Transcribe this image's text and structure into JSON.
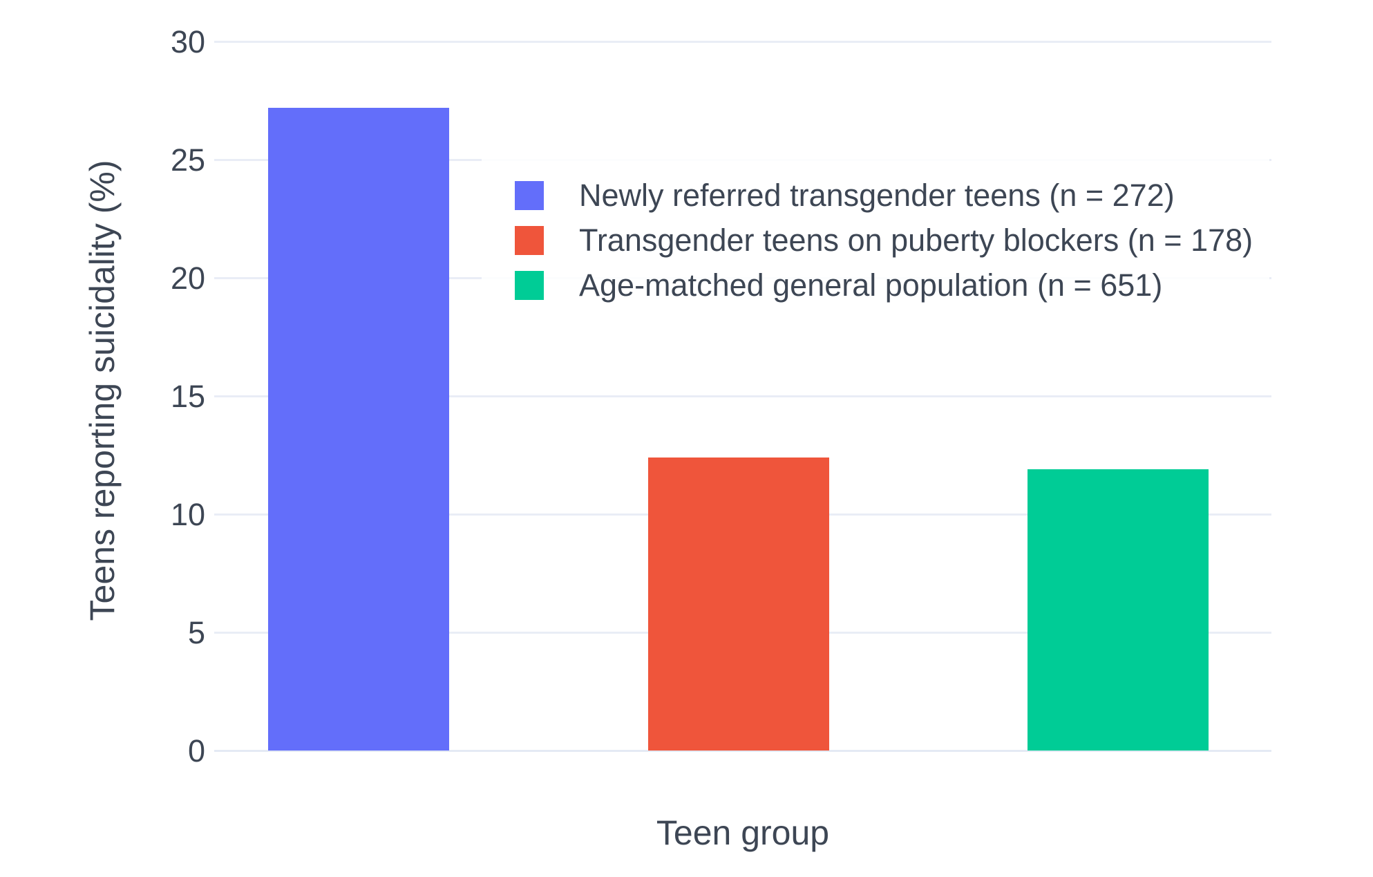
{
  "chart_data": {
    "type": "bar",
    "title": "",
    "xlabel": "Teen group",
    "ylabel": "Teens reporting suicidality (%)",
    "categories": [
      "Newly referred transgender teens (n = 272)",
      "Transgender teens on puberty blockers (n = 178)",
      "Age-matched general population (n = 651)"
    ],
    "values": [
      27.2,
      12.4,
      11.9
    ],
    "bar_colors": [
      "#636efa",
      "#ef553b",
      "#00cc96"
    ],
    "yticks": [
      0,
      5,
      10,
      15,
      20,
      25,
      30
    ],
    "ylim": [
      0,
      30
    ],
    "grid": true,
    "legend_position": "inside-top-center",
    "x_tick_labels": []
  },
  "colors": {
    "background": "#ffffff",
    "gridline": "#e9edf6",
    "zeroline": "#e4eaf4",
    "text": "#3d4654",
    "legend_background": "rgba(255,255,255,0.85)"
  }
}
